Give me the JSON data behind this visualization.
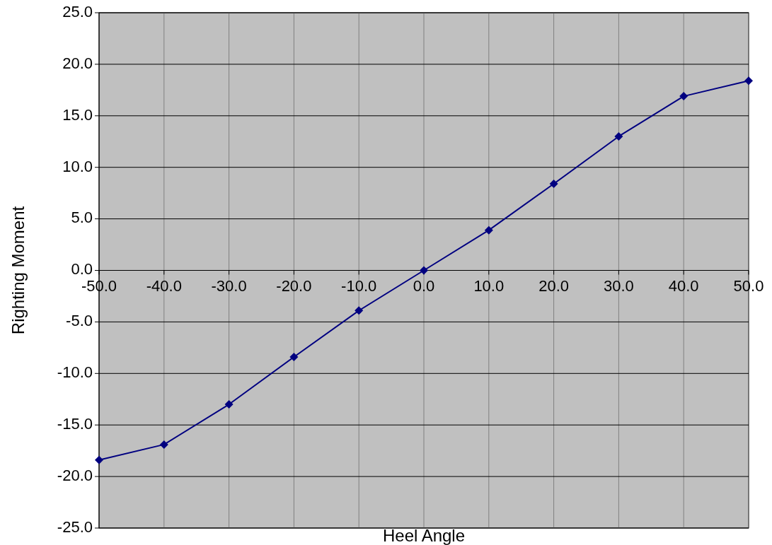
{
  "chart_data": {
    "type": "line",
    "xlabel": "Heel Angle",
    "ylabel": "Righting Moment",
    "x": [
      -50,
      -40,
      -30,
      -20,
      -10,
      0,
      10,
      20,
      30,
      40,
      50
    ],
    "series": [
      {
        "color": "#000080",
        "values": [
          -18.4,
          -16.9,
          -13.0,
          -8.4,
          -3.9,
          0,
          3.9,
          8.4,
          13.0,
          16.9,
          18.4
        ]
      }
    ],
    "xlim": [
      -50,
      50
    ],
    "xticks": [
      {
        "value": -50,
        "label": "-50.0"
      },
      {
        "value": -40,
        "label": "-40.0"
      },
      {
        "value": -30,
        "label": "-30.0"
      },
      {
        "value": -20,
        "label": "-20.0"
      },
      {
        "value": -10,
        "label": "-10.0"
      },
      {
        "value": 0,
        "label": "0.0"
      },
      {
        "value": 10,
        "label": "10.0"
      },
      {
        "value": 20,
        "label": "20.0"
      },
      {
        "value": 30,
        "label": "30.0"
      },
      {
        "value": 40,
        "label": "40.0"
      },
      {
        "value": 50,
        "label": "50.0"
      }
    ],
    "ylim": [
      -25,
      25
    ],
    "yticks": [
      {
        "value": -25,
        "label": "-25.0"
      },
      {
        "value": -20,
        "label": "-20.0"
      },
      {
        "value": -15,
        "label": "-15.0"
      },
      {
        "value": -10,
        "label": "-10.0"
      },
      {
        "value": -5,
        "label": "-5.0"
      },
      {
        "value": 0,
        "label": "0.0"
      },
      {
        "value": 5,
        "label": "5.0"
      },
      {
        "value": 10,
        "label": "10.0"
      },
      {
        "value": 15,
        "label": "15.0"
      },
      {
        "value": 20,
        "label": "20.0"
      },
      {
        "value": 25,
        "label": "25.0"
      }
    ],
    "grid": true,
    "marker": "diamond",
    "line_style": "solid"
  }
}
